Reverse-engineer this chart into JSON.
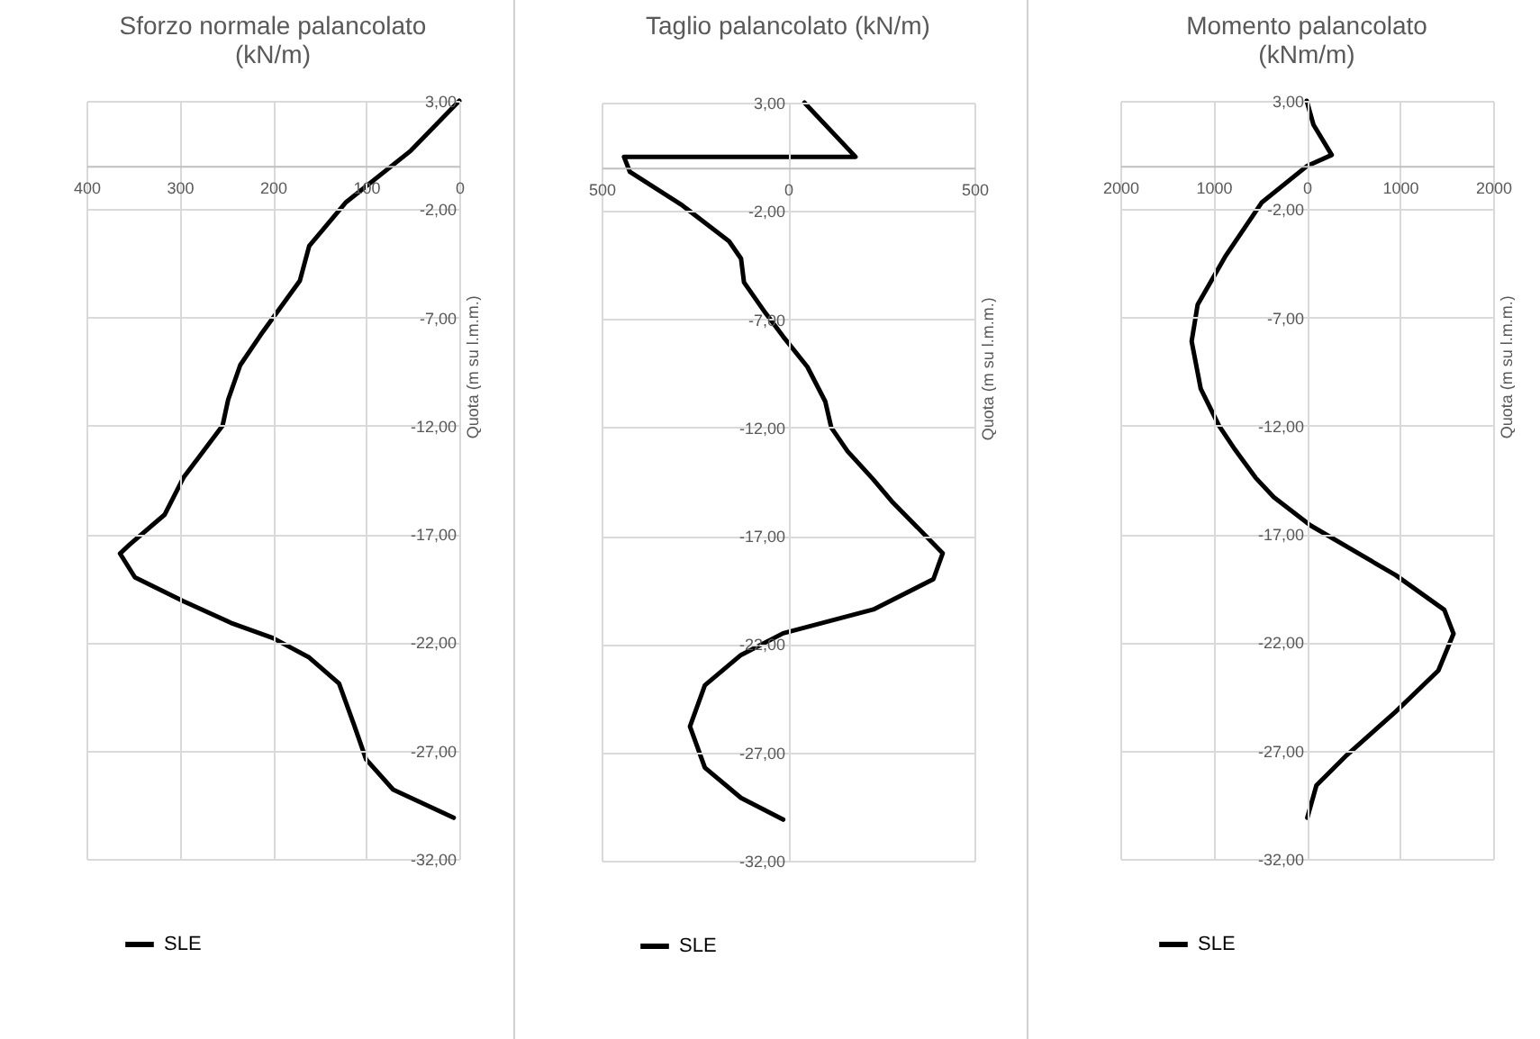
{
  "chart_data": [
    {
      "type": "line",
      "title": "Sforzo normale palancolato (kN/m)",
      "ylabel": "Quota (m su l.m.m.)",
      "xlim": [
        400,
        0
      ],
      "xticks": [
        400,
        300,
        200,
        100,
        0
      ],
      "ylim": [
        -32,
        3
      ],
      "yticks": [
        {
          "value": 3,
          "label": "3,00"
        },
        {
          "value": -2,
          "label": "-2,00"
        },
        {
          "value": -7,
          "label": "-7,00"
        },
        {
          "value": -12,
          "label": "-12,00"
        },
        {
          "value": -17,
          "label": "-17,00"
        },
        {
          "value": -22,
          "label": "-22,00"
        },
        {
          "value": -27,
          "label": "-27,00"
        },
        {
          "value": -32,
          "label": "-32,00"
        }
      ],
      "grid": true,
      "legend": "bottom",
      "line_style": "solid",
      "marker": "none",
      "series": [
        {
          "name": "SLE",
          "color": "#000000",
          "x": [
            0,
            52,
            122,
            161,
            171,
            213,
            235,
            248,
            254,
            296,
            316,
            354,
            364,
            348,
            296,
            245,
            200,
            161,
            129,
            113,
            100,
            71,
            6
          ],
          "values": [
            3,
            0.7,
            -1.7,
            -3.7,
            -5.3,
            -7.8,
            -9.2,
            -10.8,
            -12,
            -14.4,
            -16.1,
            -17.5,
            -17.9,
            -19,
            -20.1,
            -21.1,
            -21.8,
            -22.7,
            -23.9,
            -25.8,
            -27.4,
            -28.8,
            -30.1
          ]
        }
      ]
    },
    {
      "type": "line",
      "title": "Taglio palancolato (kN/m)",
      "ylabel": "Quota (m su l.m.m.)",
      "xlim": [
        500,
        -500
      ],
      "xticks": [
        500,
        0,
        {
          "value": -500,
          "label": "500"
        }
      ],
      "ylim": [
        -32,
        3
      ],
      "yticks": [
        {
          "value": 3,
          "label": "3,00"
        },
        {
          "value": -2,
          "label": "-2,00"
        },
        {
          "value": -7,
          "label": "-7,00"
        },
        {
          "value": -12,
          "label": "-12,00"
        },
        {
          "value": -17,
          "label": "-17,00"
        },
        {
          "value": -22,
          "label": "-22,00"
        },
        {
          "value": -27,
          "label": "-27,00"
        },
        {
          "value": -32,
          "label": "-32,00"
        }
      ],
      "grid": true,
      "legend": "bottom",
      "line_style": "solid",
      "marker": "none",
      "series": [
        {
          "name": "SLE",
          "color": "#000000",
          "x": [
            -44,
            -181,
            440,
            424,
            287,
            158,
            126,
            118,
            61,
            13,
            -52,
            -100,
            -116,
            -160,
            -229,
            -278,
            -415,
            -390,
            -229,
            13,
            126,
            223,
            263,
            223,
            126,
            13
          ],
          "values": [
            3,
            0.5,
            0.5,
            -0.2,
            -1.7,
            -3.4,
            -4.2,
            -5.3,
            -6.7,
            -7.8,
            -9.2,
            -10.8,
            -12,
            -13.1,
            -14.4,
            -15.4,
            -17.8,
            -19,
            -20.4,
            -21.5,
            -22.5,
            -23.9,
            -25.8,
            -27.7,
            -29.1,
            -30.1
          ]
        }
      ]
    },
    {
      "type": "line",
      "title": "Momento palancolato (kNm/m)",
      "ylabel": "Quota (m su l.m.m.)",
      "xlim": [
        2000,
        -2000
      ],
      "xticks": [
        2000,
        1000,
        0,
        {
          "value": -1000,
          "label": "1000"
        },
        {
          "value": -2000,
          "label": "2000"
        }
      ],
      "ylim": [
        -32,
        3
      ],
      "yticks": [
        {
          "value": 3,
          "label": "3,00"
        },
        {
          "value": -2,
          "label": "-2,00"
        },
        {
          "value": -7,
          "label": "-7,00"
        },
        {
          "value": -12,
          "label": "-12,00"
        },
        {
          "value": -17,
          "label": "-17,00"
        },
        {
          "value": -22,
          "label": "-22,00"
        },
        {
          "value": -27,
          "label": "-27,00"
        },
        {
          "value": -32,
          "label": "-32,00"
        }
      ],
      "grid": true,
      "legend": "bottom",
      "line_style": "solid",
      "marker": "none",
      "series": [
        {
          "name": "SLE",
          "color": "#000000",
          "x": [
            0,
            -72,
            -268,
            -6,
            484,
            876,
            1170,
            1235,
            1137,
            941,
            770,
            549,
            353,
            -39,
            -955,
            -1476,
            -1575,
            -1412,
            -955,
            -431,
            -104,
            -6
          ],
          "values": [
            3,
            1.9,
            0.5,
            0,
            -1.7,
            -4.2,
            -6.4,
            -8.1,
            -10.3,
            -12,
            -13.1,
            -14.4,
            -15.3,
            -16.6,
            -18.9,
            -20.5,
            -21.6,
            -23.3,
            -25.2,
            -27.2,
            -28.6,
            -30.1
          ]
        }
      ]
    }
  ]
}
